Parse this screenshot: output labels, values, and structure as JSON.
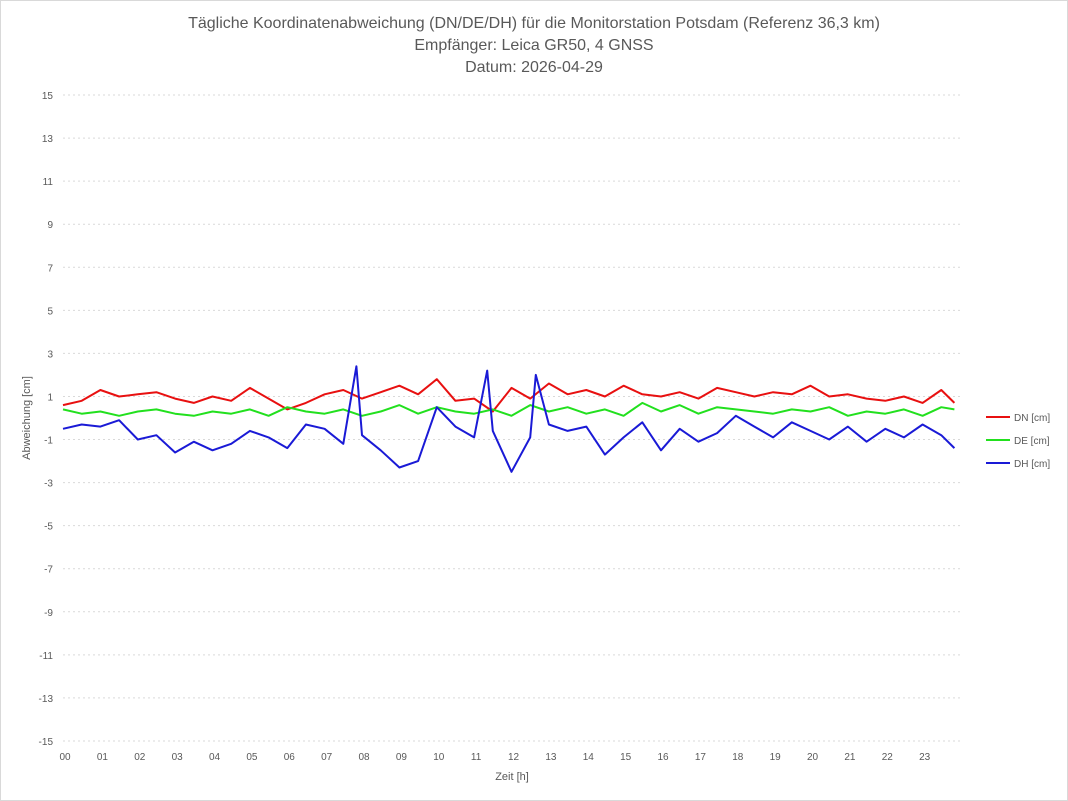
{
  "chart_data": {
    "type": "line",
    "title": [
      "Tägliche Koordinatenabweichung (DN/DE/DH) für die Monitorstation Potsdam (Referenz 36,3 km)",
      "Empfänger: Leica GR50, 4 GNSS",
      "Datum: 2026-04-29"
    ],
    "xlabel": "Zeit [h]",
    "ylabel": "Abweichung [cm]",
    "xlim": [
      0,
      24
    ],
    "ylim": [
      -15,
      15
    ],
    "x_ticks": [
      "00",
      "01",
      "02",
      "03",
      "04",
      "05",
      "06",
      "07",
      "08",
      "09",
      "10",
      "11",
      "12",
      "13",
      "14",
      "15",
      "16",
      "17",
      "18",
      "19",
      "20",
      "21",
      "22",
      "23"
    ],
    "y_ticks": [
      15,
      13,
      11,
      9,
      7,
      5,
      3,
      1,
      -1,
      -3,
      -5,
      -7,
      -9,
      -11,
      -13,
      -15
    ],
    "grid": "horizontal dashed",
    "legend_position": "right",
    "series": [
      {
        "name": "DN [cm]",
        "color": "#e81010",
        "x": [
          0.0,
          0.5,
          1.0,
          1.5,
          2.0,
          2.5,
          3.0,
          3.5,
          4.0,
          4.5,
          5.0,
          5.5,
          6.0,
          6.5,
          7.0,
          7.5,
          8.0,
          8.5,
          9.0,
          9.5,
          10.0,
          10.5,
          11.0,
          11.5,
          12.0,
          12.5,
          13.0,
          13.5,
          14.0,
          14.5,
          15.0,
          15.5,
          16.0,
          16.5,
          17.0,
          17.5,
          18.0,
          18.5,
          19.0,
          19.5,
          20.0,
          20.5,
          21.0,
          21.5,
          22.0,
          22.5,
          23.0,
          23.5,
          23.85
        ],
        "y": [
          0.6,
          0.8,
          1.3,
          1.0,
          1.1,
          1.2,
          0.9,
          0.7,
          1.0,
          0.8,
          1.4,
          0.9,
          0.4,
          0.7,
          1.1,
          1.3,
          0.9,
          1.2,
          1.5,
          1.1,
          1.8,
          0.8,
          0.9,
          0.3,
          1.4,
          0.9,
          1.6,
          1.1,
          1.3,
          1.0,
          1.5,
          1.1,
          1.0,
          1.2,
          0.9,
          1.4,
          1.2,
          1.0,
          1.2,
          1.1,
          1.5,
          1.0,
          1.1,
          0.9,
          0.8,
          1.0,
          0.7,
          1.3,
          0.7
        ]
      },
      {
        "name": "DE [cm]",
        "color": "#22e01e",
        "x": [
          0.0,
          0.5,
          1.0,
          1.5,
          2.0,
          2.5,
          3.0,
          3.5,
          4.0,
          4.5,
          5.0,
          5.5,
          6.0,
          6.5,
          7.0,
          7.5,
          8.0,
          8.5,
          9.0,
          9.5,
          10.0,
          10.5,
          11.0,
          11.5,
          12.0,
          12.5,
          13.0,
          13.5,
          14.0,
          14.5,
          15.0,
          15.5,
          16.0,
          16.5,
          17.0,
          17.5,
          18.0,
          18.5,
          19.0,
          19.5,
          20.0,
          20.5,
          21.0,
          21.5,
          22.0,
          22.5,
          23.0,
          23.5,
          23.85
        ],
        "y": [
          0.4,
          0.2,
          0.3,
          0.1,
          0.3,
          0.4,
          0.2,
          0.1,
          0.3,
          0.2,
          0.4,
          0.1,
          0.5,
          0.3,
          0.2,
          0.4,
          0.1,
          0.3,
          0.6,
          0.2,
          0.5,
          0.3,
          0.2,
          0.4,
          0.1,
          0.6,
          0.3,
          0.5,
          0.2,
          0.4,
          0.1,
          0.7,
          0.3,
          0.6,
          0.2,
          0.5,
          0.4,
          0.3,
          0.2,
          0.4,
          0.3,
          0.5,
          0.1,
          0.3,
          0.2,
          0.4,
          0.1,
          0.5,
          0.4
        ]
      },
      {
        "name": "DH [cm]",
        "color": "#1a1ad6",
        "x": [
          0.0,
          0.5,
          1.0,
          1.5,
          2.0,
          2.5,
          3.0,
          3.5,
          4.0,
          4.5,
          5.0,
          5.5,
          6.0,
          6.5,
          7.0,
          7.5,
          7.85,
          8.0,
          8.5,
          9.0,
          9.5,
          10.0,
          10.5,
          11.0,
          11.35,
          11.5,
          12.0,
          12.5,
          12.65,
          13.0,
          13.5,
          14.0,
          14.5,
          15.0,
          15.5,
          16.0,
          16.5,
          17.0,
          17.5,
          18.0,
          18.5,
          19.0,
          19.5,
          20.0,
          20.5,
          21.0,
          21.5,
          22.0,
          22.5,
          23.0,
          23.5,
          23.85
        ],
        "y": [
          -0.5,
          -0.3,
          -0.4,
          -0.1,
          -1.0,
          -0.8,
          -1.6,
          -1.1,
          -1.5,
          -1.2,
          -0.6,
          -0.9,
          -1.4,
          -0.3,
          -0.5,
          -1.2,
          2.4,
          -0.8,
          -1.5,
          -2.3,
          -2.0,
          0.5,
          -0.4,
          -0.9,
          2.2,
          -0.6,
          -2.5,
          -0.9,
          2.0,
          -0.3,
          -0.6,
          -0.4,
          -1.7,
          -0.9,
          -0.2,
          -1.5,
          -0.5,
          -1.1,
          -0.7,
          0.1,
          -0.4,
          -0.9,
          -0.2,
          -0.6,
          -1.0,
          -0.4,
          -1.1,
          -0.5,
          -0.9,
          -0.3,
          -0.8,
          -1.4
        ]
      }
    ]
  }
}
